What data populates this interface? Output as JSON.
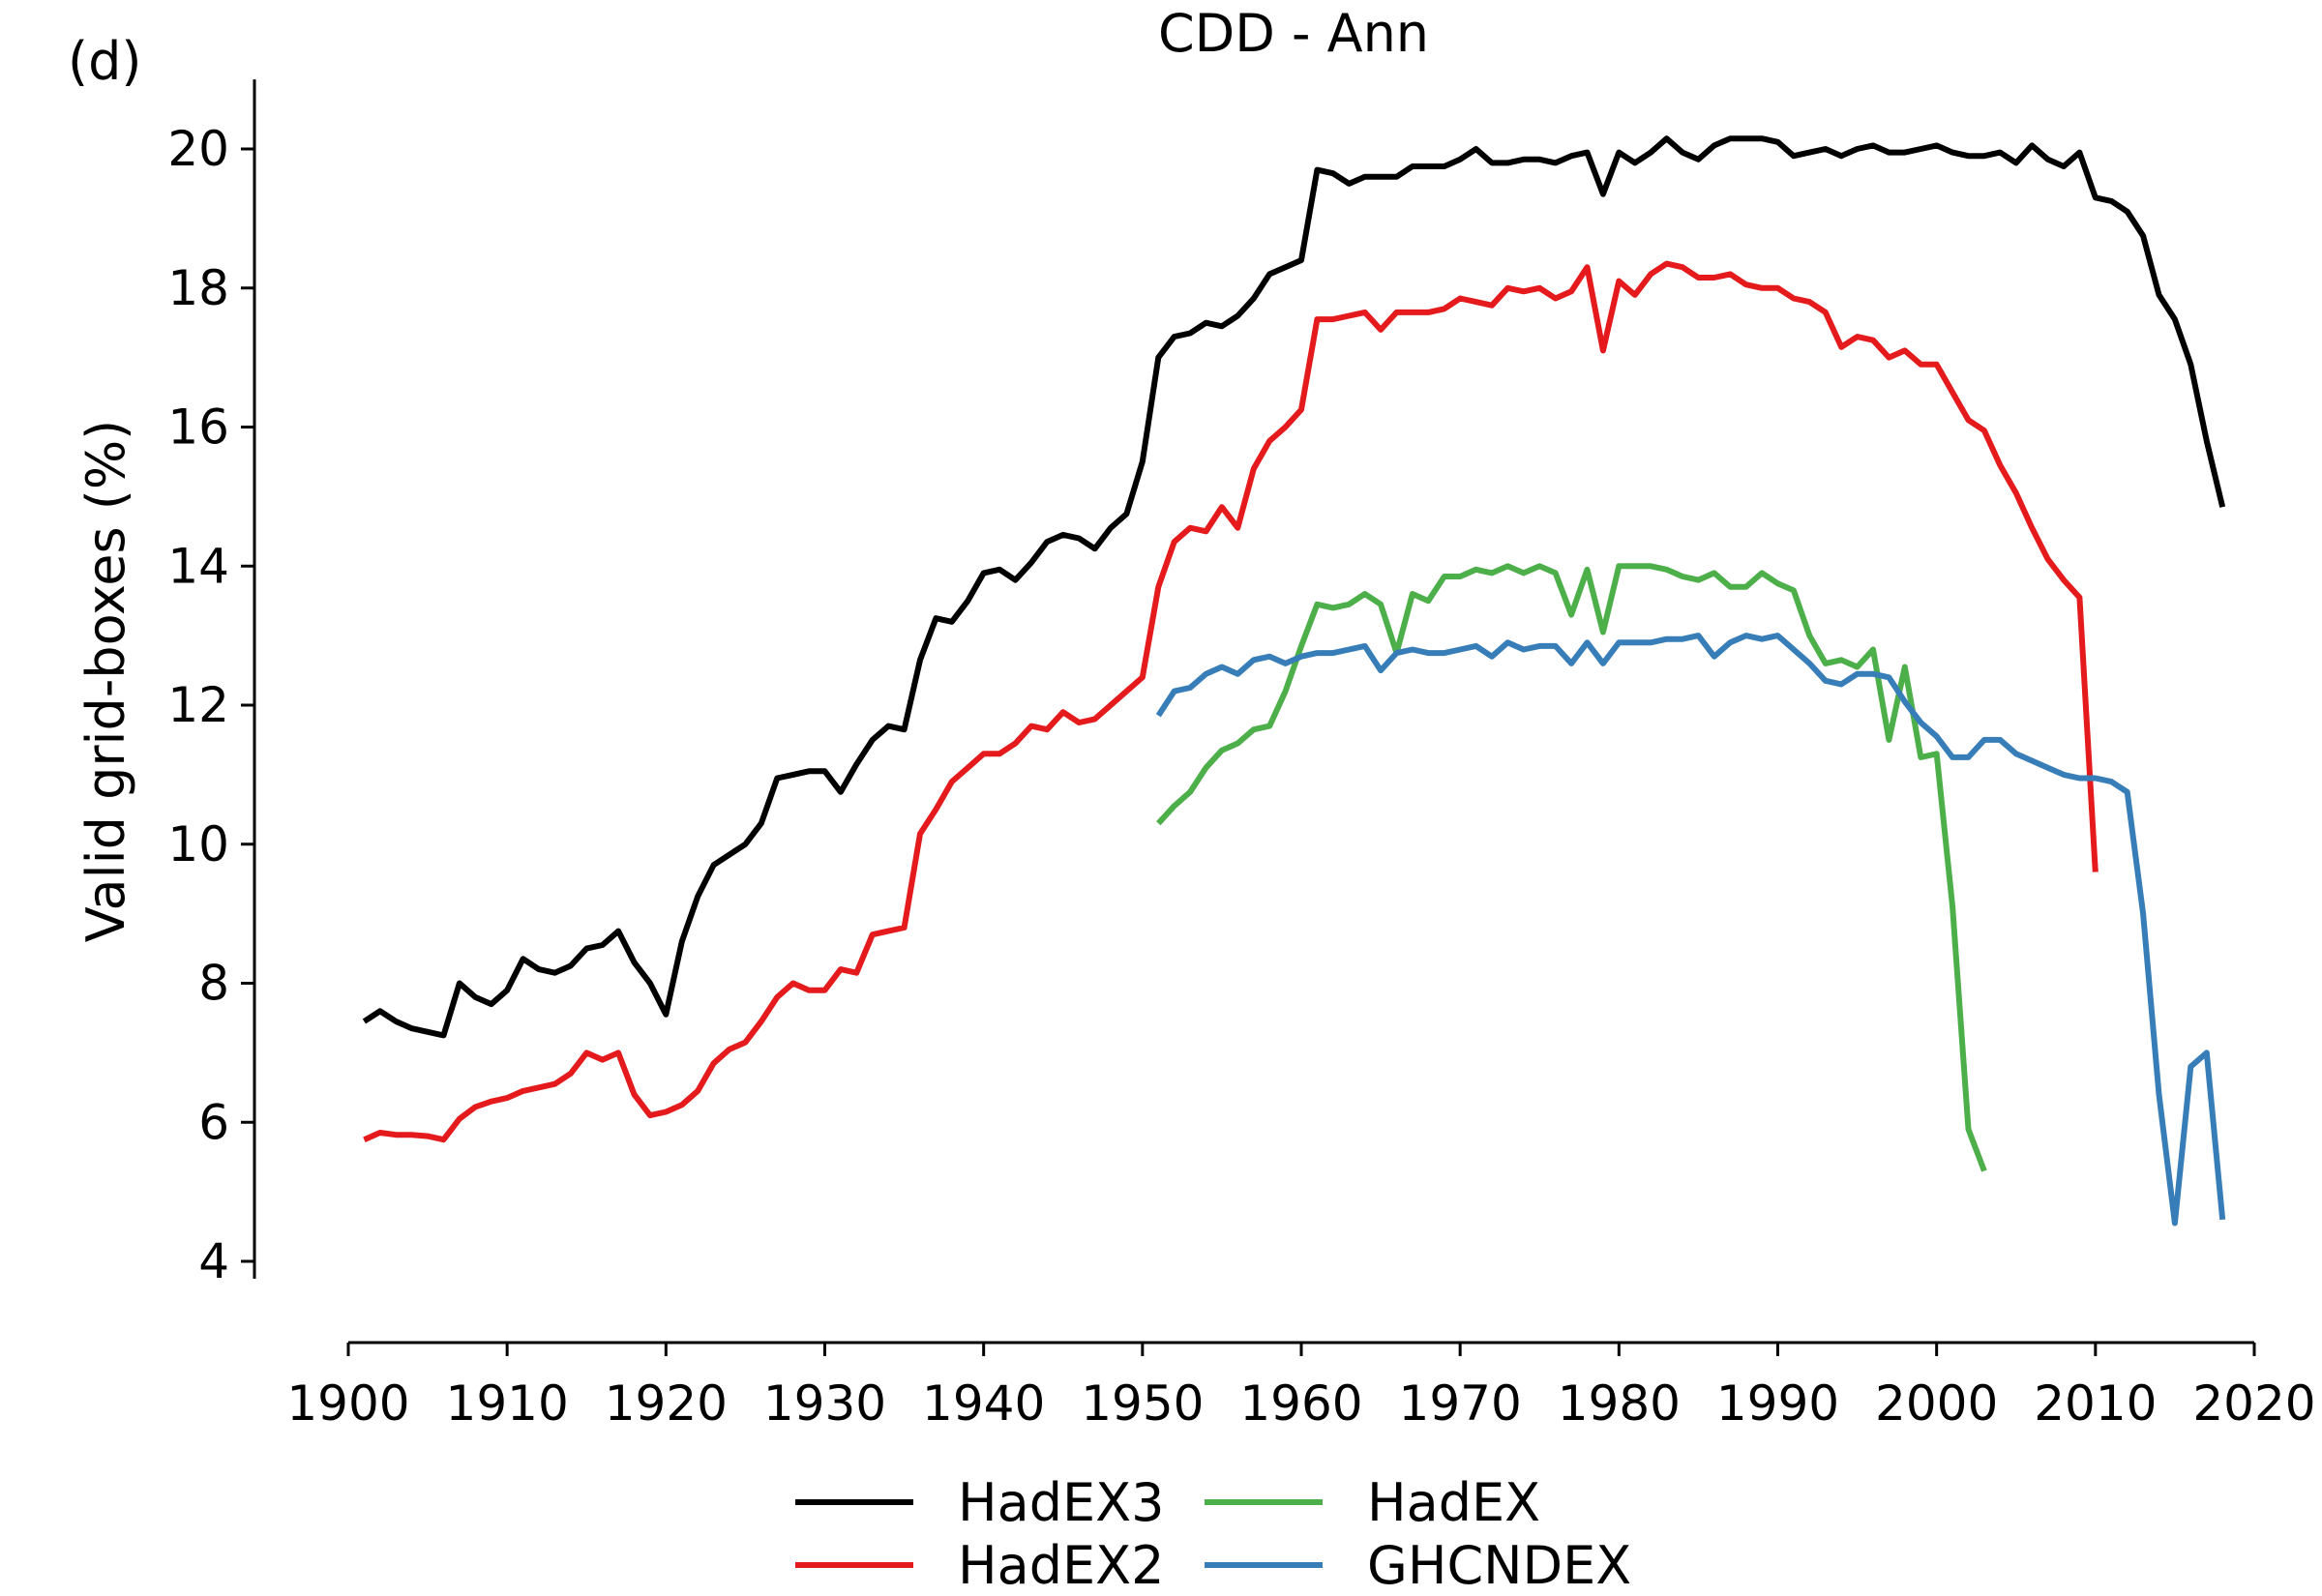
{
  "panel_label": "(d)",
  "chart_data": {
    "type": "line",
    "title": "CDD - Ann",
    "xlabel": "",
    "ylabel": "Valid grid-boxes (%)",
    "xlim": [
      1900,
      2020
    ],
    "ylim": [
      4,
      21
    ],
    "x_ticks": [
      1900,
      1910,
      1920,
      1930,
      1940,
      1950,
      1960,
      1970,
      1980,
      1990,
      2000,
      2010,
      2020
    ],
    "y_ticks": [
      4,
      6,
      8,
      10,
      12,
      14,
      16,
      18,
      20
    ],
    "grid": false,
    "legend_position": "bottom",
    "series": [
      {
        "name": "HadEX3",
        "color": "#000000",
        "x": [
          1901,
          1902,
          1903,
          1904,
          1905,
          1906,
          1907,
          1908,
          1909,
          1910,
          1911,
          1912,
          1913,
          1914,
          1915,
          1916,
          1917,
          1918,
          1919,
          1920,
          1921,
          1922,
          1923,
          1924,
          1925,
          1926,
          1927,
          1928,
          1929,
          1930,
          1931,
          1932,
          1933,
          1934,
          1935,
          1936,
          1937,
          1938,
          1939,
          1940,
          1941,
          1942,
          1943,
          1944,
          1945,
          1946,
          1947,
          1948,
          1949,
          1950,
          1951,
          1952,
          1953,
          1954,
          1955,
          1956,
          1957,
          1958,
          1959,
          1960,
          1961,
          1962,
          1963,
          1964,
          1965,
          1966,
          1967,
          1968,
          1969,
          1970,
          1971,
          1972,
          1973,
          1974,
          1975,
          1976,
          1977,
          1978,
          1979,
          1980,
          1981,
          1982,
          1983,
          1984,
          1985,
          1986,
          1987,
          1988,
          1989,
          1990,
          1991,
          1992,
          1993,
          1994,
          1995,
          1996,
          1997,
          1998,
          1999,
          2000,
          2001,
          2002,
          2003,
          2004,
          2005,
          2006,
          2007,
          2008,
          2009,
          2010,
          2011,
          2012,
          2013,
          2014,
          2015,
          2016,
          2017,
          2018
        ],
        "values": [
          7.45,
          7.6,
          7.45,
          7.35,
          7.3,
          7.25,
          8.0,
          7.8,
          7.7,
          7.9,
          8.35,
          8.2,
          8.15,
          8.25,
          8.5,
          8.55,
          8.75,
          8.3,
          8.0,
          7.55,
          8.6,
          9.25,
          9.7,
          9.85,
          10.0,
          10.3,
          10.95,
          11.0,
          11.05,
          11.05,
          10.75,
          11.15,
          11.5,
          11.7,
          11.65,
          12.65,
          13.25,
          13.2,
          13.5,
          13.9,
          13.95,
          13.8,
          14.05,
          14.35,
          14.45,
          14.4,
          14.25,
          14.55,
          14.75,
          15.5,
          17.0,
          17.3,
          17.35,
          17.5,
          17.45,
          17.6,
          17.85,
          18.2,
          18.3,
          18.4,
          19.7,
          19.65,
          19.5,
          19.6,
          19.6,
          19.6,
          19.75,
          19.75,
          19.75,
          19.85,
          20.0,
          19.8,
          19.8,
          19.85,
          19.85,
          19.8,
          19.9,
          19.95,
          19.35,
          19.95,
          19.8,
          19.95,
          20.15,
          19.95,
          19.85,
          20.05,
          20.15,
          20.15,
          20.15,
          20.1,
          19.9,
          19.95,
          20.0,
          19.9,
          20.0,
          20.05,
          19.95,
          19.95,
          20.0,
          20.05,
          19.95,
          19.9,
          19.9,
          19.95,
          19.8,
          20.05,
          19.85,
          19.75,
          19.95,
          19.3,
          19.25,
          19.1,
          18.75,
          17.9,
          17.55,
          16.9,
          15.8,
          14.85
        ]
      },
      {
        "name": "HadEX2",
        "color": "#e41a1c",
        "x": [
          1901,
          1902,
          1903,
          1904,
          1905,
          1906,
          1907,
          1908,
          1909,
          1910,
          1911,
          1912,
          1913,
          1914,
          1915,
          1916,
          1917,
          1918,
          1919,
          1920,
          1921,
          1922,
          1923,
          1924,
          1925,
          1926,
          1927,
          1928,
          1929,
          1930,
          1931,
          1932,
          1933,
          1934,
          1935,
          1936,
          1937,
          1938,
          1939,
          1940,
          1941,
          1942,
          1943,
          1944,
          1945,
          1946,
          1947,
          1948,
          1949,
          1950,
          1951,
          1952,
          1953,
          1954,
          1955,
          1956,
          1957,
          1958,
          1959,
          1960,
          1961,
          1962,
          1963,
          1964,
          1965,
          1966,
          1967,
          1968,
          1969,
          1970,
          1971,
          1972,
          1973,
          1974,
          1975,
          1976,
          1977,
          1978,
          1979,
          1980,
          1981,
          1982,
          1983,
          1984,
          1985,
          1986,
          1987,
          1988,
          1989,
          1990,
          1991,
          1992,
          1993,
          1994,
          1995,
          1996,
          1997,
          1998,
          1999,
          2000,
          2001,
          2002,
          2003,
          2004,
          2005,
          2006,
          2007,
          2008,
          2009,
          2010
        ],
        "values": [
          5.75,
          5.85,
          5.82,
          5.82,
          5.8,
          5.75,
          6.05,
          6.22,
          6.3,
          6.35,
          6.45,
          6.5,
          6.55,
          6.7,
          7.0,
          6.9,
          7.0,
          6.4,
          6.1,
          6.15,
          6.25,
          6.45,
          6.85,
          7.05,
          7.15,
          7.45,
          7.8,
          8.0,
          7.9,
          7.9,
          8.2,
          8.15,
          8.7,
          8.75,
          8.8,
          10.15,
          10.5,
          10.9,
          11.1,
          11.3,
          11.3,
          11.45,
          11.7,
          11.65,
          11.9,
          11.75,
          11.8,
          12.0,
          12.2,
          12.4,
          13.7,
          14.35,
          14.55,
          14.5,
          14.85,
          14.55,
          15.4,
          15.8,
          16.0,
          16.25,
          17.55,
          17.55,
          17.6,
          17.65,
          17.4,
          17.65,
          17.65,
          17.65,
          17.7,
          17.85,
          17.8,
          17.75,
          18.0,
          17.95,
          18.0,
          17.85,
          17.95,
          18.3,
          17.1,
          18.1,
          17.9,
          18.2,
          18.35,
          18.3,
          18.15,
          18.15,
          18.2,
          18.05,
          18.0,
          18.0,
          17.85,
          17.8,
          17.65,
          17.15,
          17.3,
          17.25,
          17.0,
          17.1,
          16.9,
          16.9,
          16.5,
          16.1,
          15.95,
          15.45,
          15.05,
          14.55,
          14.1,
          13.8,
          13.55,
          9.6
        ]
      },
      {
        "name": "HadEX",
        "color": "#4daf4a",
        "x": [
          1951,
          1952,
          1953,
          1954,
          1955,
          1956,
          1957,
          1958,
          1959,
          1960,
          1961,
          1962,
          1963,
          1964,
          1965,
          1966,
          1967,
          1968,
          1969,
          1970,
          1971,
          1972,
          1973,
          1974,
          1975,
          1976,
          1977,
          1978,
          1979,
          1980,
          1981,
          1982,
          1983,
          1984,
          1985,
          1986,
          1987,
          1988,
          1989,
          1990,
          1991,
          1992,
          1993,
          1994,
          1995,
          1996,
          1997,
          1998,
          1999,
          2000,
          2001,
          2002,
          2003
        ],
        "values": [
          10.3,
          10.55,
          10.75,
          11.1,
          11.35,
          11.45,
          11.65,
          11.7,
          12.2,
          12.85,
          13.45,
          13.4,
          13.45,
          13.6,
          13.45,
          12.75,
          13.6,
          13.5,
          13.85,
          13.85,
          13.95,
          13.9,
          14.0,
          13.9,
          14.0,
          13.9,
          13.3,
          13.95,
          13.05,
          14.0,
          14.0,
          14.0,
          13.95,
          13.85,
          13.8,
          13.9,
          13.7,
          13.7,
          13.9,
          13.75,
          13.65,
          13.0,
          12.6,
          12.65,
          12.55,
          12.8,
          11.5,
          12.55,
          11.25,
          11.3,
          9.1,
          5.9,
          5.3
        ]
      },
      {
        "name": "GHCNDEX",
        "color": "#377eb8",
        "x": [
          1951,
          1952,
          1953,
          1954,
          1955,
          1956,
          1957,
          1958,
          1959,
          1960,
          1961,
          1962,
          1963,
          1964,
          1965,
          1966,
          1967,
          1968,
          1969,
          1970,
          1971,
          1972,
          1973,
          1974,
          1975,
          1976,
          1977,
          1978,
          1979,
          1980,
          1981,
          1982,
          1983,
          1984,
          1985,
          1986,
          1987,
          1988,
          1989,
          1990,
          1991,
          1992,
          1993,
          1994,
          1995,
          1996,
          1997,
          1998,
          1999,
          2000,
          2001,
          2002,
          2003,
          2004,
          2005,
          2006,
          2007,
          2008,
          2009,
          2010,
          2011,
          2012,
          2013,
          2014,
          2015,
          2016,
          2017,
          2018
        ],
        "values": [
          11.85,
          12.2,
          12.25,
          12.45,
          12.55,
          12.45,
          12.65,
          12.7,
          12.6,
          12.7,
          12.75,
          12.75,
          12.8,
          12.85,
          12.5,
          12.75,
          12.8,
          12.75,
          12.75,
          12.8,
          12.85,
          12.7,
          12.9,
          12.8,
          12.85,
          12.85,
          12.6,
          12.9,
          12.6,
          12.9,
          12.9,
          12.9,
          12.95,
          12.95,
          13.0,
          12.7,
          12.9,
          13.0,
          12.95,
          13.0,
          12.8,
          12.6,
          12.35,
          12.3,
          12.45,
          12.45,
          12.4,
          12.05,
          11.75,
          11.55,
          11.25,
          11.25,
          11.5,
          11.5,
          11.3,
          11.2,
          11.1,
          11.0,
          10.95,
          10.95,
          10.9,
          10.75,
          9.0,
          6.4,
          4.55,
          6.8,
          7.0,
          4.6
        ]
      }
    ]
  }
}
